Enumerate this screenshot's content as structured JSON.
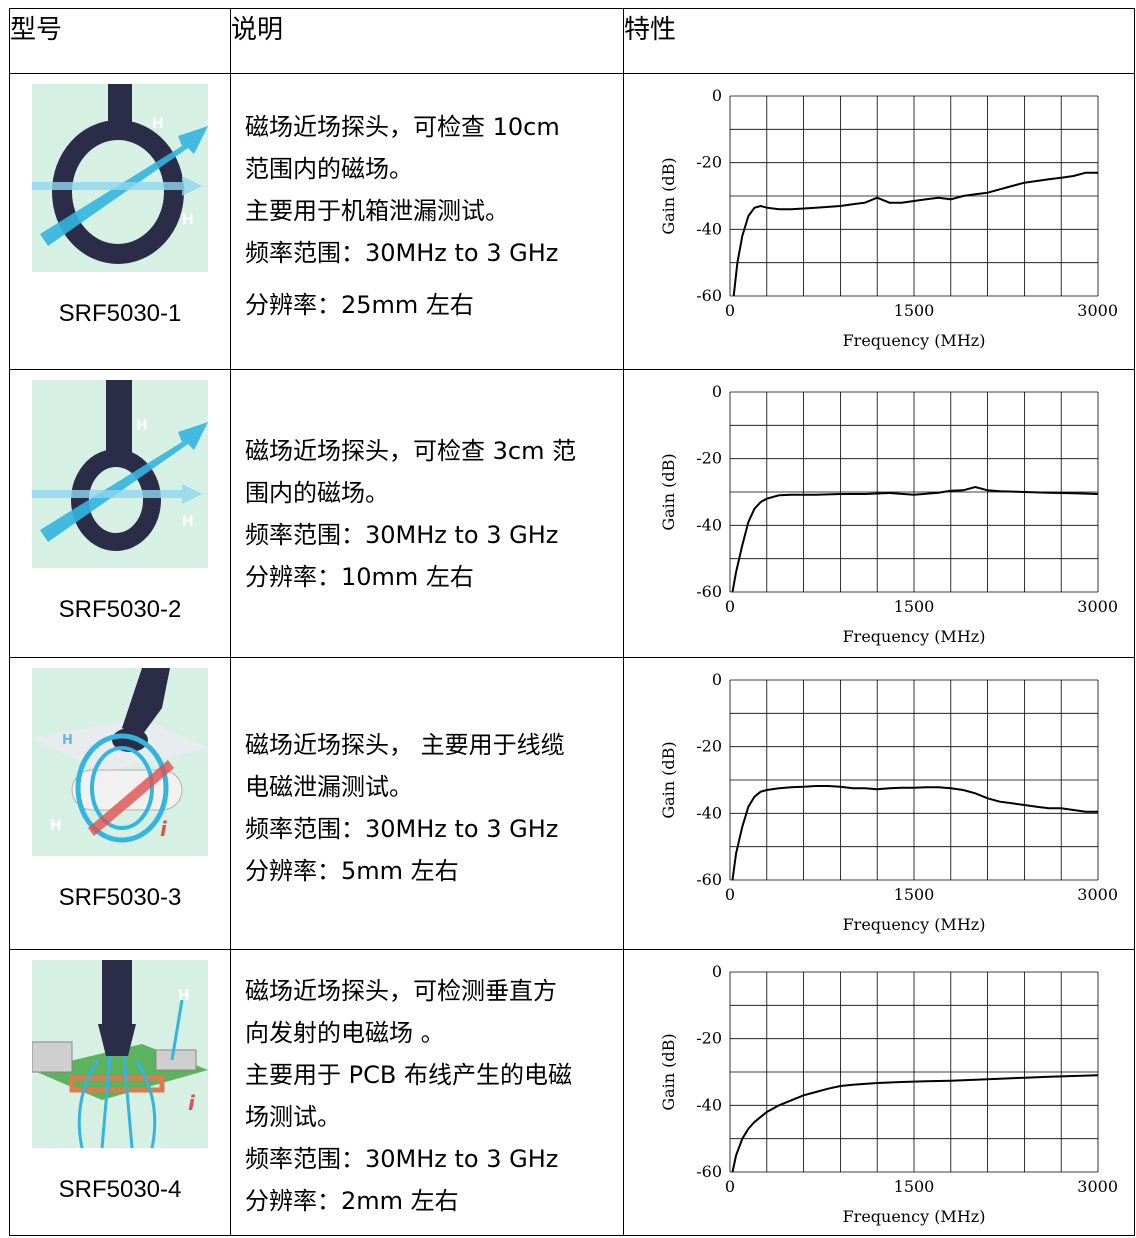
{
  "header": {
    "model": "型号",
    "desc": "说明",
    "feature": "特性"
  },
  "rows": [
    {
      "model": "SRF5030-1",
      "icon": "loop-probe-large-icon",
      "desc": [
        "磁场近场探头，可检查 10cm",
        "范围内的磁场。",
        "主要用于机箱泄漏测试。",
        "频率范围：30MHz to 3 GHz",
        "分辨率：25mm 左右"
      ]
    },
    {
      "model": "SRF5030-2",
      "icon": "loop-probe-small-icon",
      "desc": [
        "磁场近场探头，可检查 3cm 范",
        "围内的磁场。",
        "频率范围：30MHz to 3 GHz",
        "分辨率：10mm 左右"
      ]
    },
    {
      "model": "SRF5030-3",
      "icon": "cable-probe-icon",
      "desc": [
        "磁场近场探头， 主要用于线缆",
        "电磁泄漏测试。",
        "频率范围：30MHz to 3 GHz",
        "分辨率：5mm 左右"
      ]
    },
    {
      "model": "SRF5030-4",
      "icon": "pcb-probe-icon",
      "desc": [
        "磁场近场探头，可检测垂直方",
        "向发射的电磁场 。",
        "主要用于 PCB 布线产生的电磁",
        "场测试。",
        "频率范围：30MHz to 3 GHz",
        "分辨率：2mm 左右"
      ]
    }
  ],
  "colors": {
    "probe_bg": "#d6f1e3",
    "probe_body": "#2b2d48",
    "field_arrow": "#33b5e0",
    "current_arrow": "#e05050"
  },
  "chart_data": [
    {
      "type": "line",
      "xlabel": "Frequency (MHz)",
      "ylabel": "Gain (dB)",
      "xlim": [
        0,
        3000
      ],
      "ylim": [
        -60,
        0
      ],
      "xticks": [
        "0",
        "1500",
        "3000"
      ],
      "yticks": [
        "0",
        "-20",
        "-40",
        "-60"
      ],
      "grid": true,
      "x": [
        30,
        60,
        100,
        150,
        200,
        250,
        300,
        400,
        500,
        700,
        900,
        1000,
        1100,
        1200,
        1300,
        1400,
        1500,
        1600,
        1700,
        1800,
        1900,
        2000,
        2100,
        2200,
        2300,
        2400,
        2500,
        2600,
        2700,
        2800,
        2900,
        3000
      ],
      "y": [
        -60,
        -50,
        -42,
        -36,
        -33.5,
        -33,
        -33.5,
        -34,
        -34,
        -33.5,
        -33,
        -32.5,
        -32,
        -30.5,
        -32,
        -32,
        -31.5,
        -31,
        -30.5,
        -31,
        -30,
        -29.5,
        -29,
        -28,
        -27,
        -26,
        -25.5,
        -25,
        -24.5,
        -24,
        -23,
        -23
      ]
    },
    {
      "type": "line",
      "xlabel": "Frequency (MHz)",
      "ylabel": "Gain (dB)",
      "xlim": [
        0,
        3000
      ],
      "ylim": [
        -60,
        0
      ],
      "xticks": [
        "0",
        "1500",
        "3000"
      ],
      "yticks": [
        "0",
        "-20",
        "-40",
        "-60"
      ],
      "grid": true,
      "x": [
        20,
        50,
        100,
        150,
        200,
        250,
        300,
        400,
        500,
        700,
        900,
        1100,
        1300,
        1500,
        1700,
        1800,
        1900,
        2000,
        2100,
        2200,
        2400,
        2600,
        2800,
        3000
      ],
      "y": [
        -60,
        -54,
        -46,
        -39,
        -35,
        -33,
        -32,
        -31,
        -30.8,
        -30.8,
        -30.6,
        -30.6,
        -30.3,
        -30.8,
        -30.2,
        -29.6,
        -29.5,
        -28.5,
        -29.5,
        -29.8,
        -30,
        -30.2,
        -30.4,
        -30.6
      ]
    },
    {
      "type": "line",
      "xlabel": "Frequency (MHz)",
      "ylabel": "Gain (dB)",
      "xlim": [
        0,
        3000
      ],
      "ylim": [
        -60,
        0
      ],
      "xticks": [
        "0",
        "1500",
        "3000"
      ],
      "yticks": [
        "0",
        "-20",
        "-40",
        "-60"
      ],
      "grid": true,
      "x": [
        20,
        50,
        100,
        150,
        200,
        250,
        300,
        400,
        500,
        600,
        700,
        800,
        900,
        1000,
        1100,
        1200,
        1300,
        1400,
        1500,
        1600,
        1700,
        1800,
        1900,
        2000,
        2100,
        2200,
        2300,
        2400,
        2500,
        2600,
        2700,
        2800,
        2900,
        3000
      ],
      "y": [
        -60,
        -52,
        -44,
        -38,
        -35,
        -33.5,
        -33,
        -32.5,
        -32.2,
        -32,
        -31.8,
        -31.8,
        -32,
        -32.5,
        -32.5,
        -32.8,
        -32.5,
        -32.3,
        -32.3,
        -32.2,
        -32.2,
        -32.5,
        -33,
        -34,
        -35.5,
        -36.5,
        -37,
        -37.5,
        -38,
        -38.5,
        -38.5,
        -39,
        -39.5,
        -39.5
      ]
    },
    {
      "type": "line",
      "xlabel": "Frequency (MHz)",
      "ylabel": "Gain (dB)",
      "xlim": [
        0,
        3000
      ],
      "ylim": [
        -60,
        0
      ],
      "xticks": [
        "0",
        "1500",
        "3000"
      ],
      "yticks": [
        "0",
        "-20",
        "-40",
        "-60"
      ],
      "grid": true,
      "x": [
        20,
        50,
        100,
        150,
        200,
        300,
        400,
        500,
        600,
        700,
        800,
        900,
        1000,
        1200,
        1400,
        1600,
        1800,
        2000,
        2200,
        2400,
        2600,
        2800,
        3000
      ],
      "y": [
        -60,
        -55,
        -50,
        -47,
        -45,
        -42,
        -40,
        -38.5,
        -37,
        -36,
        -35,
        -34.2,
        -33.8,
        -33.3,
        -33,
        -32.8,
        -32.6,
        -32.3,
        -32,
        -31.7,
        -31.4,
        -31.2,
        -31
      ]
    }
  ]
}
